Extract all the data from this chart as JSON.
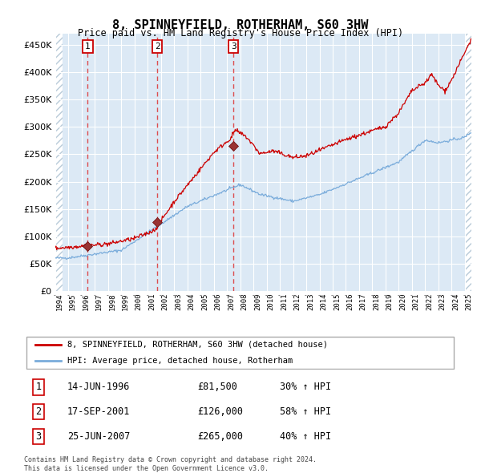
{
  "title": "8, SPINNEYFIELD, ROTHERHAM, S60 3HW",
  "subtitle": "Price paid vs. HM Land Registry's House Price Index (HPI)",
  "xlim": [
    1994.0,
    2025.5
  ],
  "ylim": [
    0,
    470000
  ],
  "yticks": [
    0,
    50000,
    100000,
    150000,
    200000,
    250000,
    300000,
    350000,
    400000,
    450000
  ],
  "ytick_labels": [
    "£0",
    "£50K",
    "£100K",
    "£150K",
    "£200K",
    "£250K",
    "£300K",
    "£350K",
    "£400K",
    "£450K"
  ],
  "xticks": [
    1994,
    1995,
    1996,
    1997,
    1998,
    1999,
    2000,
    2001,
    2002,
    2003,
    2004,
    2005,
    2006,
    2007,
    2008,
    2009,
    2010,
    2011,
    2012,
    2013,
    2014,
    2015,
    2016,
    2017,
    2018,
    2019,
    2020,
    2021,
    2022,
    2023,
    2024,
    2025
  ],
  "sale_dates": [
    1996.45,
    2001.71,
    2007.48
  ],
  "sale_prices": [
    81500,
    126000,
    265000
  ],
  "sale_labels": [
    "1",
    "2",
    "3"
  ],
  "legend_red": "8, SPINNEYFIELD, ROTHERHAM, S60 3HW (detached house)",
  "legend_blue": "HPI: Average price, detached house, Rotherham",
  "table_rows": [
    [
      "1",
      "14-JUN-1996",
      "£81,500",
      "30% ↑ HPI"
    ],
    [
      "2",
      "17-SEP-2001",
      "£126,000",
      "58% ↑ HPI"
    ],
    [
      "3",
      "25-JUN-2007",
      "£265,000",
      "40% ↑ HPI"
    ]
  ],
  "footer": "Contains HM Land Registry data © Crown copyright and database right 2024.\nThis data is licensed under the Open Government Licence v3.0.",
  "plot_bg_color": "#dce9f5",
  "red_line_color": "#cc0000",
  "blue_line_color": "#7aacdb"
}
